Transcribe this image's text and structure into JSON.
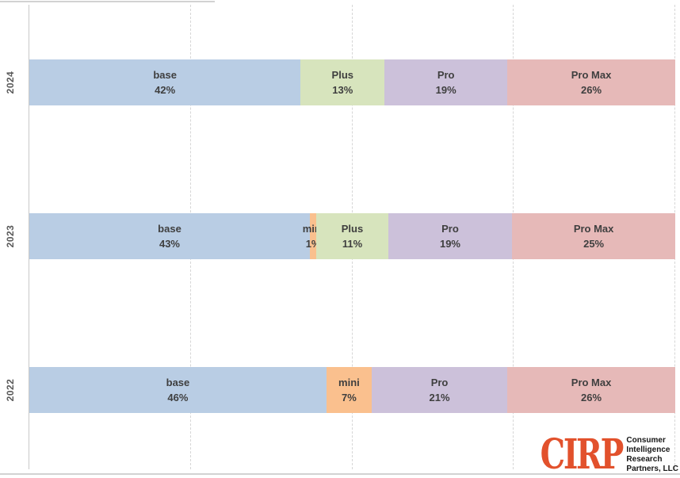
{
  "chart_data": {
    "type": "bar",
    "orientation": "horizontal-stacked",
    "title": "",
    "xlabel": "",
    "ylabel": "",
    "unit": "%",
    "categories": [
      "2024",
      "2023",
      "2022"
    ],
    "axis": {
      "xlim": [
        0,
        100
      ],
      "gridline_step_pct": 25,
      "gridline_style": "dashed-vertical",
      "tick_labels_visible": false
    },
    "legend": "none",
    "colors": {
      "blue": "#B9CDE4",
      "orange": "#FAC08E",
      "green": "#D7E4BD",
      "purple": "#CCC1DA",
      "red": "#E6B9B8"
    },
    "label_color": "#3F3F3F",
    "rows": [
      {
        "year": "2024",
        "segments": [
          {
            "label": "base",
            "pct": 42,
            "color": "blue"
          },
          {
            "label": "Plus",
            "pct": 13,
            "color": "green"
          },
          {
            "label": "Pro",
            "pct": 19,
            "color": "purple"
          },
          {
            "label": "Pro Max",
            "pct": 26,
            "color": "red"
          }
        ]
      },
      {
        "year": "2023",
        "segments": [
          {
            "label": "base",
            "pct": 43,
            "color": "blue"
          },
          {
            "label": "mini",
            "pct": 1,
            "color": "orange"
          },
          {
            "label": "Plus",
            "pct": 11,
            "color": "green"
          },
          {
            "label": "Pro",
            "pct": 19,
            "color": "purple"
          },
          {
            "label": "Pro Max",
            "pct": 25,
            "color": "red"
          }
        ]
      },
      {
        "year": "2022",
        "segments": [
          {
            "label": "base",
            "pct": 46,
            "color": "blue"
          },
          {
            "label": "mini",
            "pct": 7,
            "color": "orange"
          },
          {
            "label": "Pro",
            "pct": 21,
            "color": "purple"
          },
          {
            "label": "Pro Max",
            "pct": 26,
            "color": "red"
          }
        ]
      }
    ]
  },
  "logo": {
    "text": "CIRP",
    "color": "#E2512C",
    "lines": [
      "Consumer",
      "Intelligence",
      "Research",
      "Partners, LLC"
    ]
  }
}
